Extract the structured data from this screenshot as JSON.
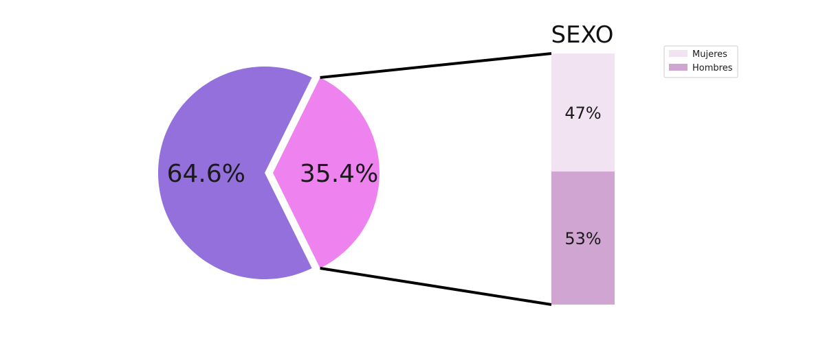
{
  "chart_data": [
    {
      "type": "pie",
      "slices": [
        {
          "label": "64.6%",
          "value": 64.6,
          "color": "#9370db"
        },
        {
          "label": "35.4%",
          "value": 35.4,
          "color": "#ee82ee",
          "exploded": true
        }
      ]
    },
    {
      "type": "bar",
      "stacked": true,
      "title": "SEXO",
      "series": [
        {
          "name": "Hombres",
          "value": 53,
          "label": "53%",
          "color": "#d1a5d2"
        },
        {
          "name": "Mujeres",
          "value": 47,
          "label": "47%",
          "color": "#f1e3f1"
        }
      ],
      "legend_position": "top-right"
    }
  ]
}
